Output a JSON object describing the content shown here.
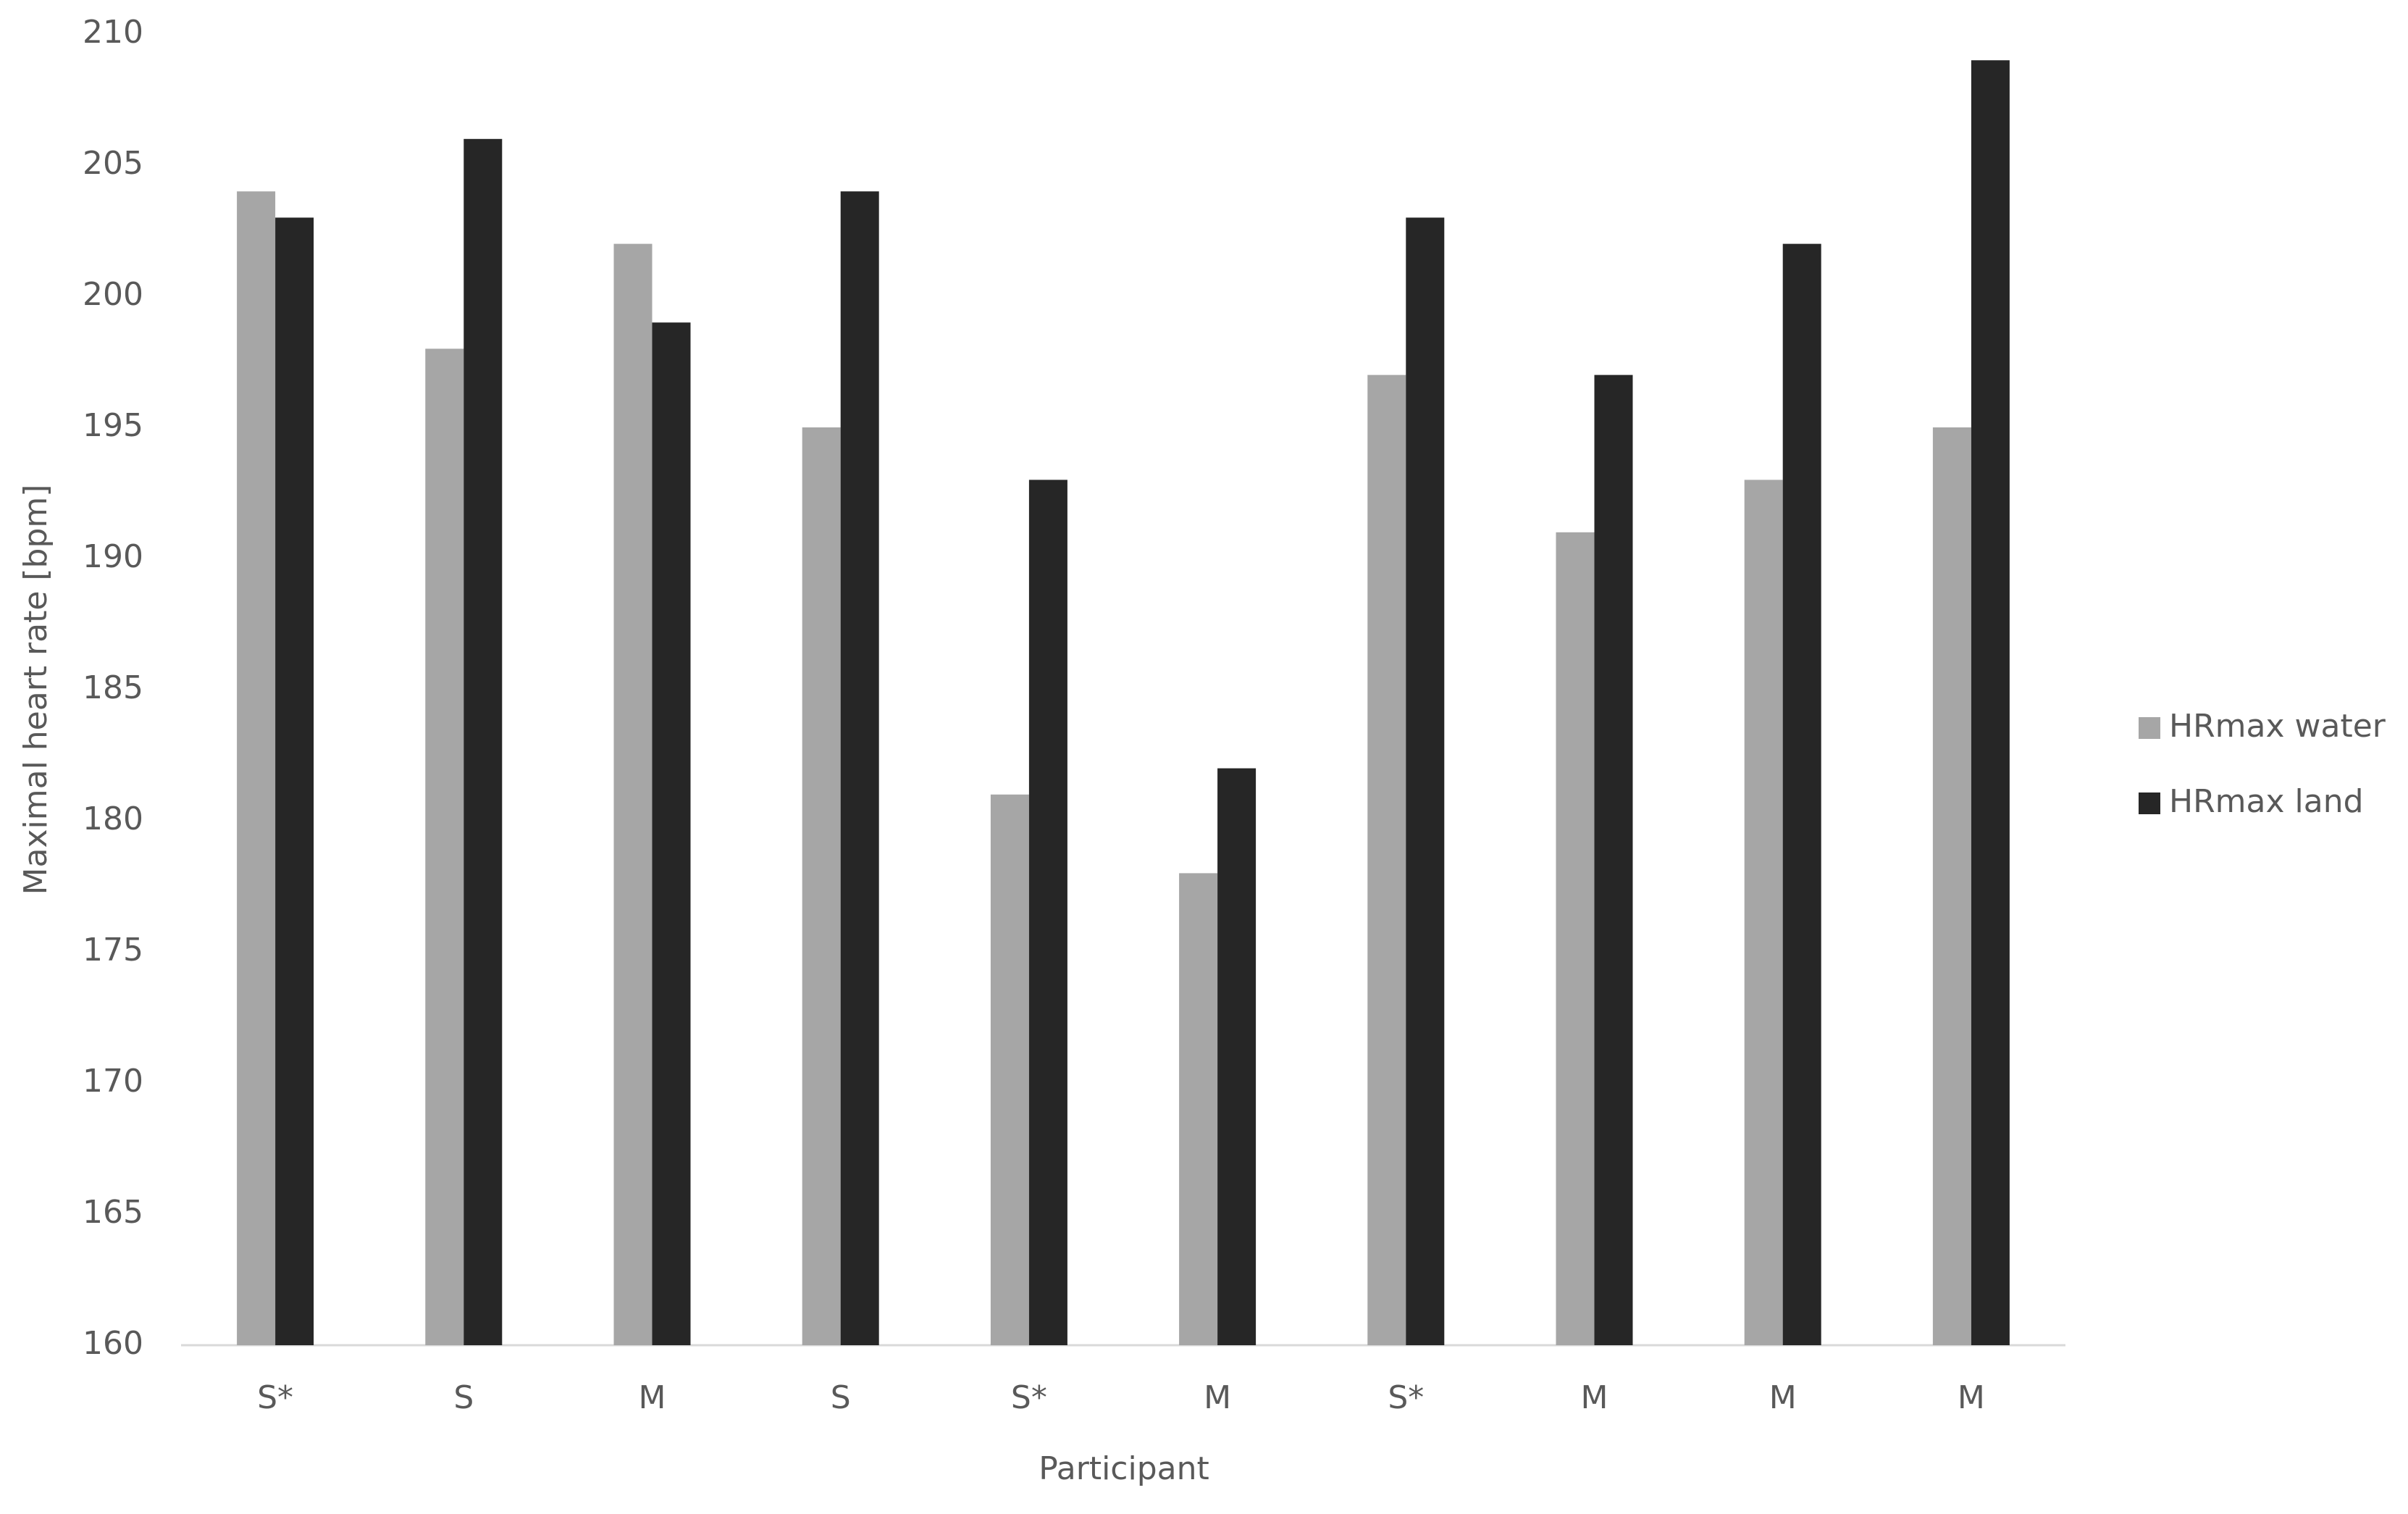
{
  "chart_data": {
    "type": "bar",
    "x_label": "Participant",
    "y_label": "Maximal heart rate [bpm]",
    "categories": [
      "S*",
      "S",
      "M",
      "S",
      "S*",
      "M",
      "S*",
      "M",
      "M",
      "M"
    ],
    "series": [
      {
        "name": "HRmax water",
        "color": "#a6a6a6",
        "values": [
          204,
          198,
          202,
          195,
          181,
          178,
          197,
          191,
          193,
          195
        ]
      },
      {
        "name": "HRmax land",
        "color": "#262626",
        "values": [
          203,
          206,
          199,
          204,
          193,
          182,
          203,
          197,
          202,
          209
        ]
      }
    ],
    "ylim": [
      160,
      210
    ],
    "yticks": [
      160,
      165,
      170,
      175,
      180,
      185,
      190,
      195,
      200,
      205,
      210
    ],
    "legend": "right"
  }
}
